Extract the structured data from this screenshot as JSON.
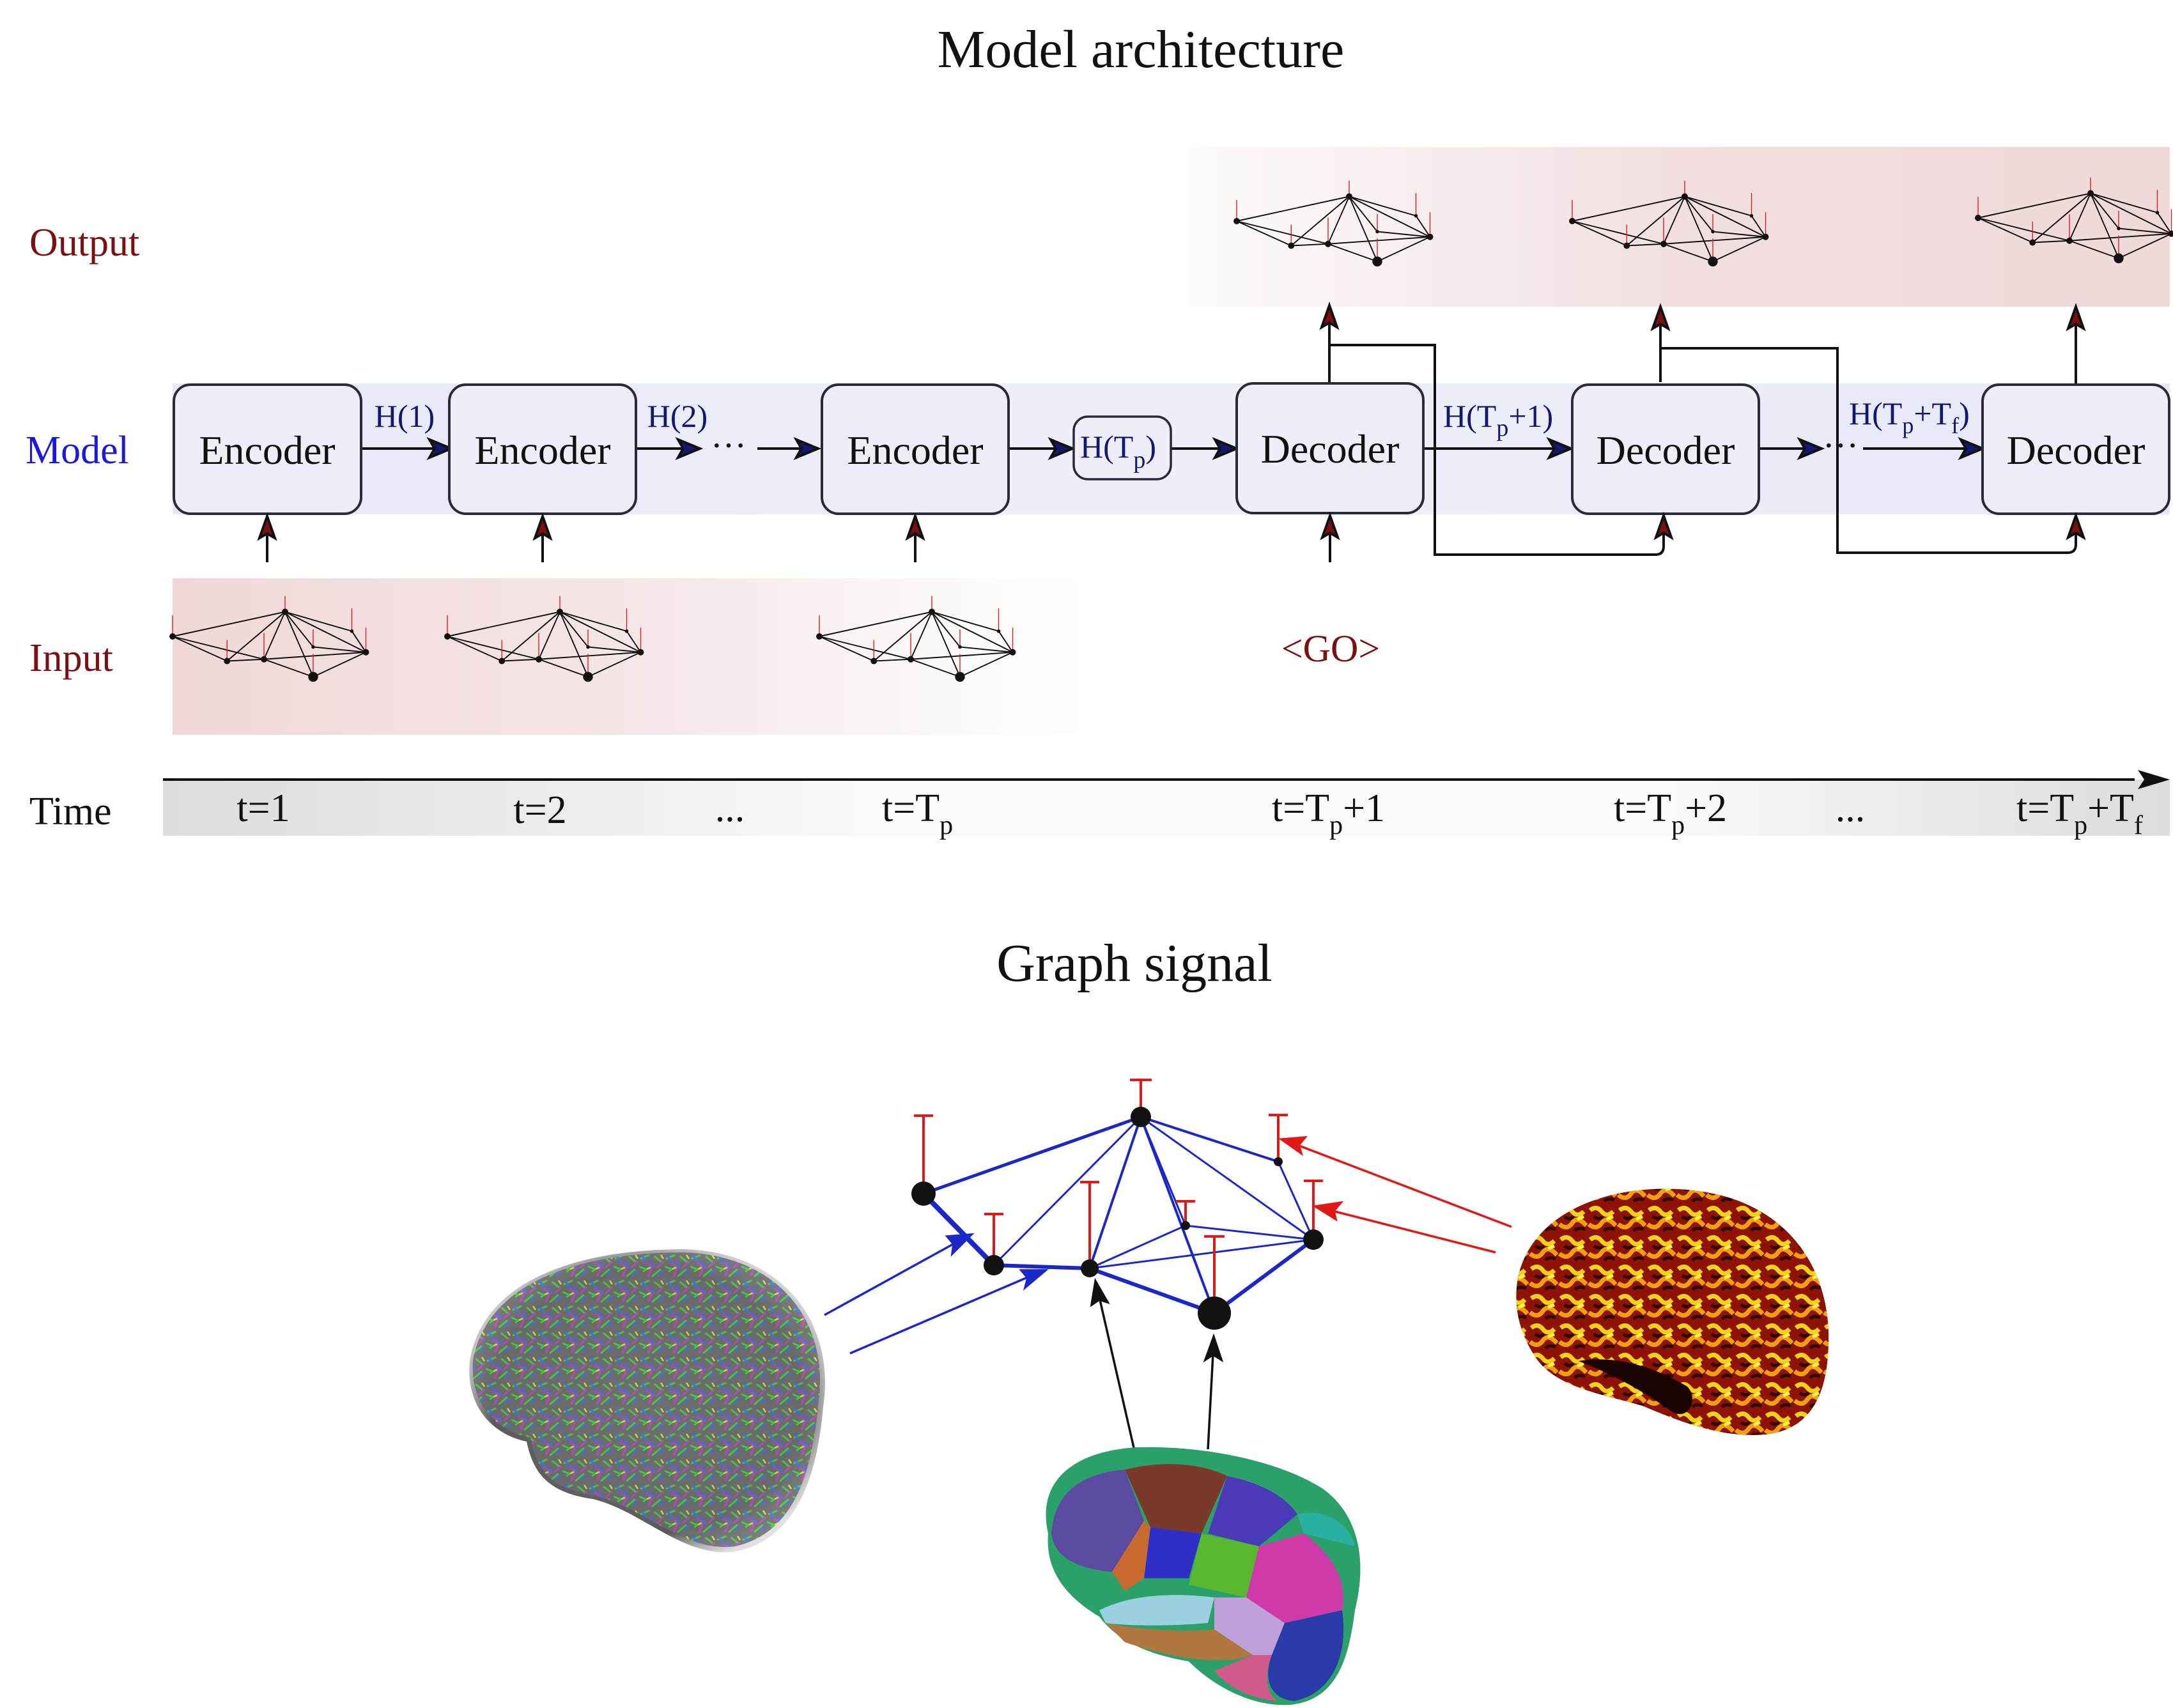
{
  "top_title": "Model architecture",
  "bottom_title": "Graph signal",
  "row_labels": {
    "output": "Output",
    "model": "Model",
    "input": "Input",
    "time": "Time"
  },
  "colors": {
    "maroon": "#7a1010",
    "blue_label": "#1a1adc",
    "navy": "#101870",
    "graph_blue": "#1a28c8",
    "red": "#e01818",
    "box_fill": "#eeeef8",
    "box_stroke": "#2a2a3a"
  },
  "encoders": [
    {
      "label": "Encoder"
    },
    {
      "label": "Encoder"
    },
    {
      "label": "Encoder"
    }
  ],
  "decoders": [
    {
      "label": "Decoder"
    },
    {
      "label": "Decoder"
    },
    {
      "label": "Decoder"
    }
  ],
  "hidden_labels": {
    "h1": "H(1)",
    "h2": "H(2)",
    "htp_main": "H(T",
    "htp_sub": "p",
    "htp_close": ")",
    "htp1_main": "H(T",
    "htp1_sub": "p",
    "htp1_tail": "+1)",
    "htptf_main": "H(T",
    "htptf_sub1": "p",
    "htptf_mid": "+T",
    "htptf_sub2": "f",
    "htptf_close": ")"
  },
  "ellipsis": "···",
  "go_token": "<GO>",
  "time_ticks": {
    "t1": "t=1",
    "t2": "t=2",
    "dots1": "...",
    "tp_main": "t=T",
    "tp_sub": "p",
    "tp1_main": "t=T",
    "tp1_sub": "p",
    "tp1_tail": "+1",
    "tp2_main": "t=T",
    "tp2_sub": "p",
    "tp2_tail": "+2",
    "dots2": "...",
    "tf_main": "t=T",
    "tf_sub1": "p",
    "tf_mid": "+T",
    "tf_sub2": "f"
  },
  "images": {
    "tractography": "brain-tractography-icon",
    "activation": "brain-activation-map-icon",
    "parcellation": "brain-parcellation-icon"
  }
}
